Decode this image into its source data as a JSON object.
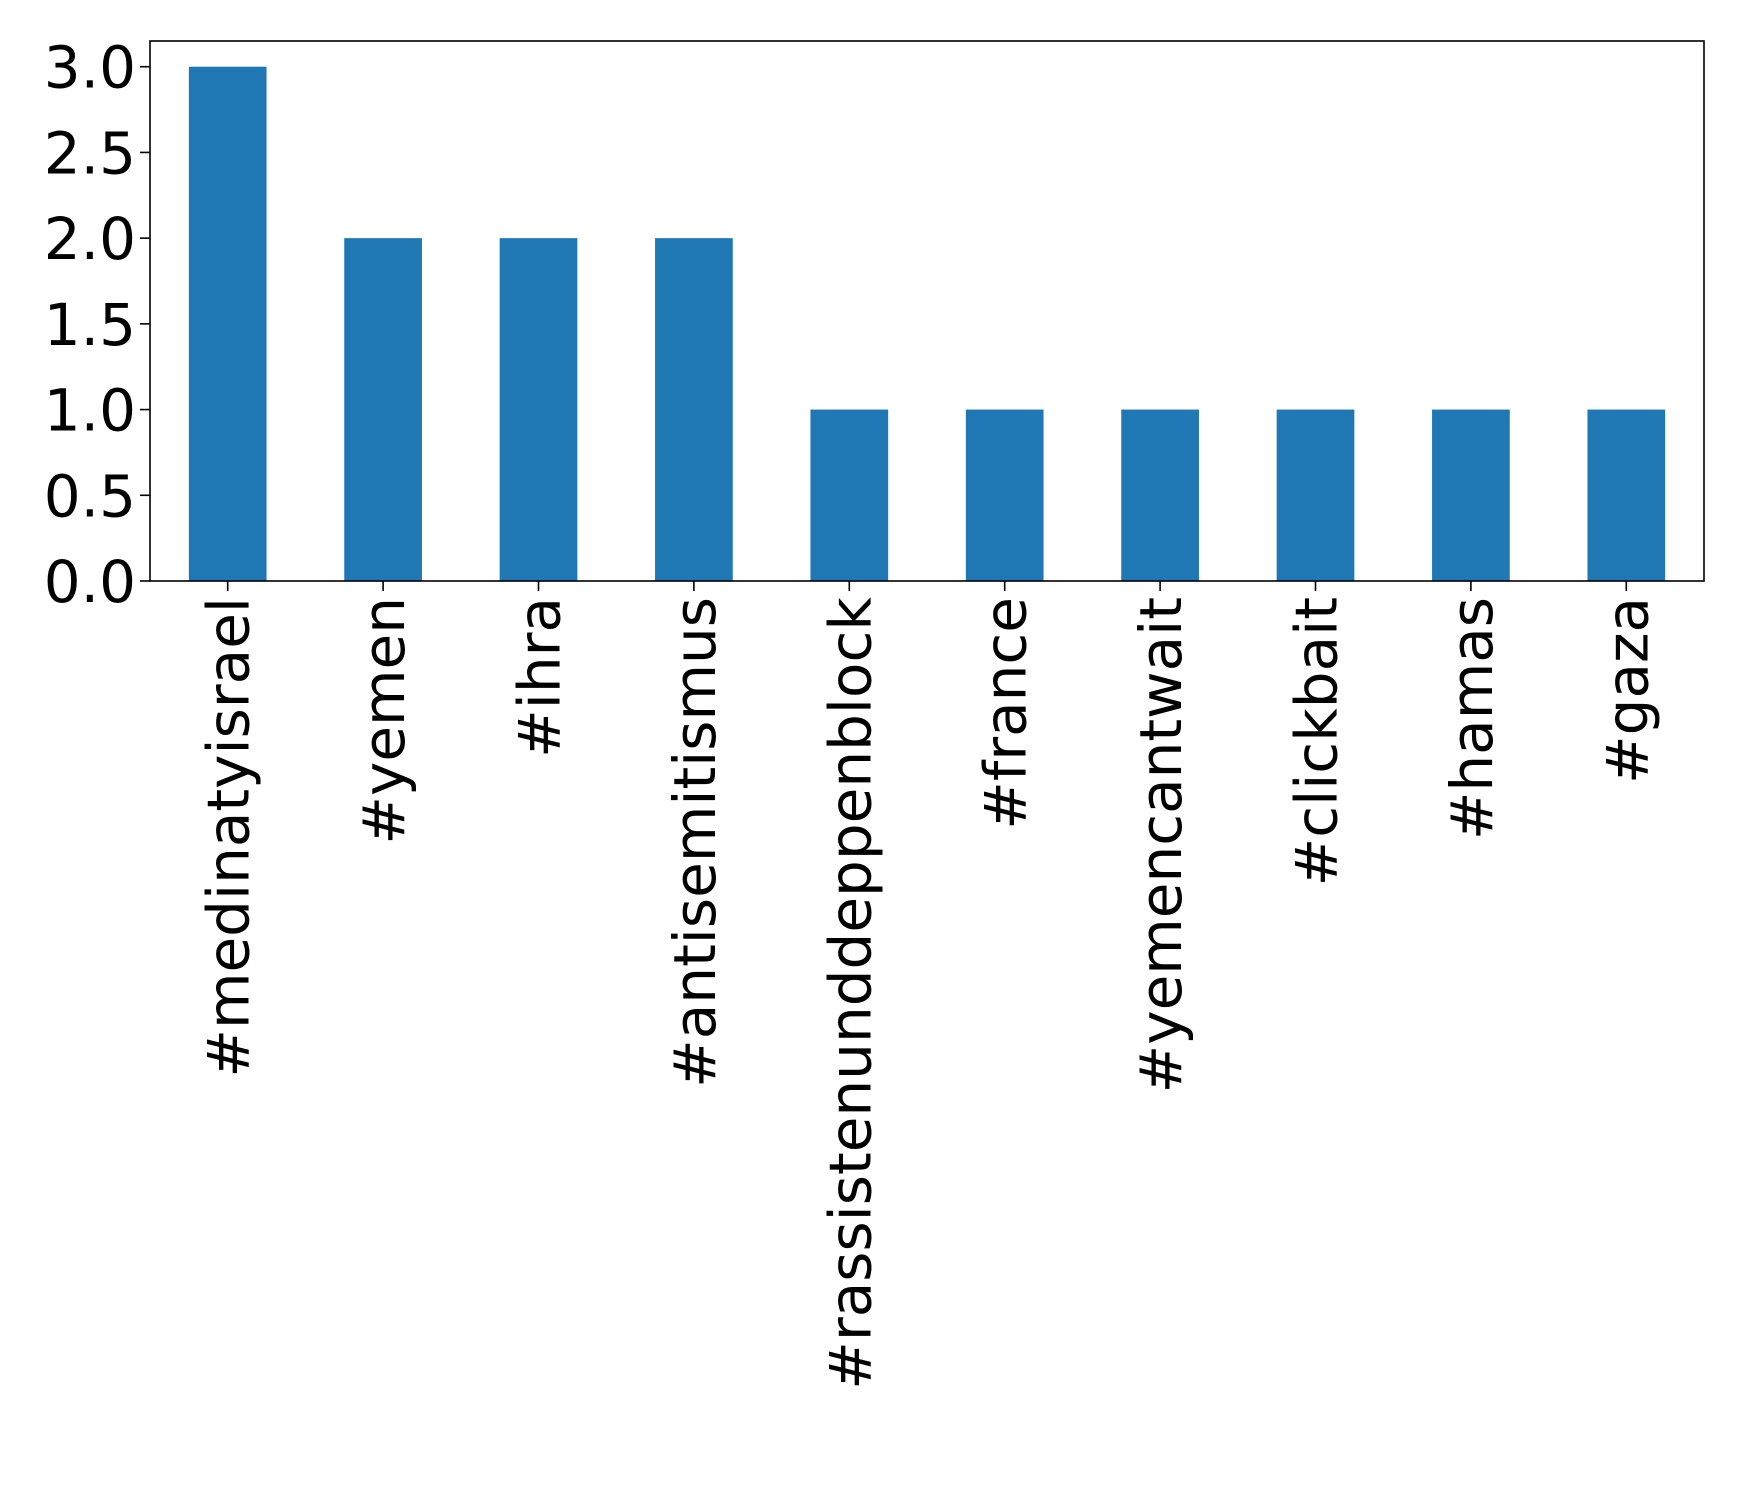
{
  "chart_data": {
    "type": "bar",
    "categories": [
      "#medinatyisrael",
      "#yemen",
      "#ihra",
      "#antisemitismus",
      "#rassistenunddeppenblock",
      "#france",
      "#yemencantwait",
      "#clickbait",
      "#hamas",
      "#gaza"
    ],
    "values": [
      3,
      2,
      2,
      2,
      1,
      1,
      1,
      1,
      1,
      1
    ],
    "yticks": [
      "0.0",
      "0.5",
      "1.0",
      "1.5",
      "2.0",
      "2.5",
      "3.0"
    ],
    "ylim": [
      0,
      3.15
    ],
    "grid": false,
    "legend": false,
    "colors": {
      "bar": "#1f77b4",
      "axis": "#000000",
      "text": "#000000"
    }
  }
}
